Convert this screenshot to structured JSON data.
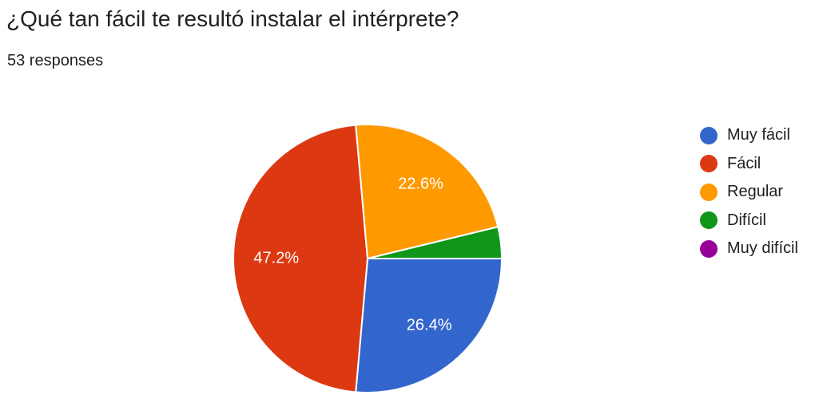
{
  "header": {
    "title": "¿Qué tan fácil te resultó instalar el intérprete?",
    "subtitle": "53 responses"
  },
  "chart_data": {
    "type": "pie",
    "title": "¿Qué tan fácil te resultó instalar el intérprete?",
    "total_label": "53 responses",
    "slices": [
      {
        "label": "Muy fácil",
        "value": 26.4,
        "display": "26.4%",
        "color": "#3366cc"
      },
      {
        "label": "Fácil",
        "value": 47.2,
        "display": "47.2%",
        "color": "#dc3912"
      },
      {
        "label": "Regular",
        "value": 22.6,
        "display": "22.6%",
        "color": "#ff9900"
      },
      {
        "label": "Difícil",
        "value": 3.8,
        "display": "",
        "color": "#109618"
      },
      {
        "label": "Muy difícil",
        "value": 0,
        "display": "",
        "color": "#990099"
      }
    ],
    "legend_position": "right"
  }
}
